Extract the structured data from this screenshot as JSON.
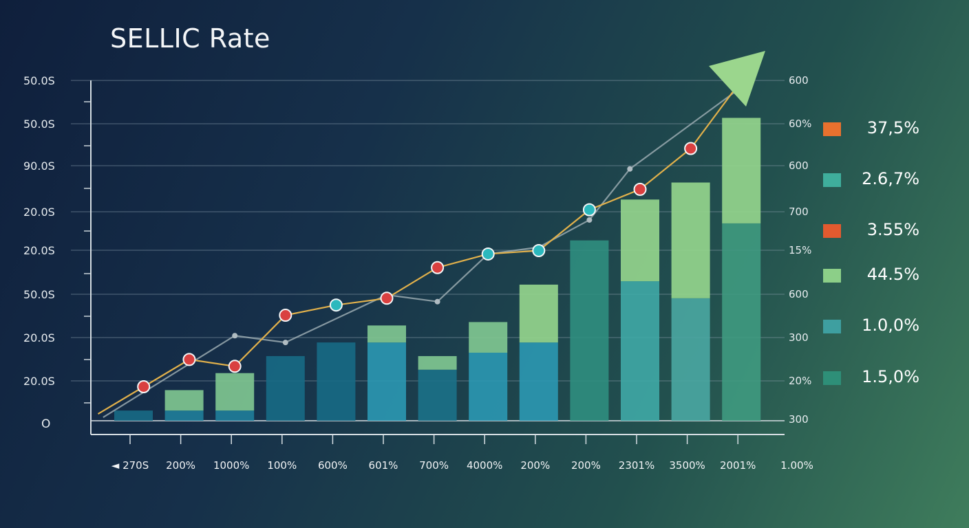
{
  "chart_data": {
    "type": "bar",
    "title": "SELLIC Rate",
    "categories": [
      "◄ 270S",
      "200%",
      "1000%",
      "100%",
      "600%",
      "601%",
      "700%",
      "4000%",
      "200%",
      "200%",
      "2301%",
      "3500%",
      "2001%"
    ],
    "x_extra_tick": "1.00%",
    "y_left_ticks": [
      "50.0S",
      "50.0S",
      "90.0S",
      "20.0S",
      "20.0S",
      "50.0S",
      "20.0S",
      "20.0S",
      "O"
    ],
    "y_right_ticks": [
      "600",
      "60%",
      "600",
      "700",
      "15%",
      "600",
      "300",
      "20%",
      "300"
    ],
    "ylim": [
      0,
      100
    ],
    "series": [
      {
        "values": [
          3,
          3,
          3,
          19,
          23,
          23,
          15,
          20,
          23,
          53,
          41,
          36,
          58
        ]
      },
      {
        "values": [
          0,
          6,
          11,
          0,
          0,
          5,
          4,
          9,
          17,
          0,
          24,
          34,
          31
        ]
      }
    ],
    "lines": [
      {
        "marker_color": "#d94040",
        "line_color": "#e2b14b",
        "points": [
          [
            0.2,
            10
          ],
          [
            1.1,
            18
          ],
          [
            2.0,
            16
          ],
          [
            3.0,
            31
          ],
          [
            4.0,
            34
          ],
          [
            5.0,
            36
          ],
          [
            6.0,
            45
          ],
          [
            7.0,
            49
          ],
          [
            8.0,
            50
          ],
          [
            9.0,
            62
          ],
          [
            10.0,
            68
          ],
          [
            11.0,
            80
          ],
          [
            12.0,
            100
          ]
        ],
        "dot_types": [
          "red",
          "red",
          "red",
          "red",
          "teal",
          "red",
          "red",
          "teal",
          "teal",
          "teal",
          "red",
          "red",
          "none"
        ]
      },
      {
        "line_color": "#9aaab0",
        "points": [
          [
            -0.6,
            1
          ],
          [
            2.0,
            25
          ],
          [
            3.0,
            23
          ],
          [
            5.0,
            37
          ],
          [
            6.0,
            35
          ],
          [
            7.0,
            49
          ],
          [
            8.0,
            51
          ],
          [
            9.0,
            59
          ],
          [
            9.8,
            74
          ],
          [
            12.0,
            98
          ]
        ]
      }
    ],
    "teal_dot_color": "#2bb8bd",
    "arrow_color": "#9bd68d",
    "legend": [
      {
        "label": "37,5%",
        "color": "#e8712e"
      },
      {
        "label": "2.6,7%",
        "color": "#3fae9c"
      },
      {
        "label": "3.55%",
        "color": "#e35a2f"
      },
      {
        "label": "44.5%",
        "color": "#8ccf88"
      },
      {
        "label": "1.0,0%",
        "color": "#3e9fa0"
      },
      {
        "label": "1.5,0%",
        "color": "#2e8f78"
      }
    ],
    "bar_colors": {
      "base": [
        "#176a85",
        "#1f7e9a",
        "#1f7e9a",
        "#176a85",
        "#176a85",
        "#2b98b2",
        "#1c7188",
        "#2b98b2",
        "#2b98b2",
        "#2f8e80",
        "#3fa9a6",
        "#4aa7a2",
        "#3f9a80"
      ],
      "top": "#7fc590"
    },
    "grid": true
  }
}
